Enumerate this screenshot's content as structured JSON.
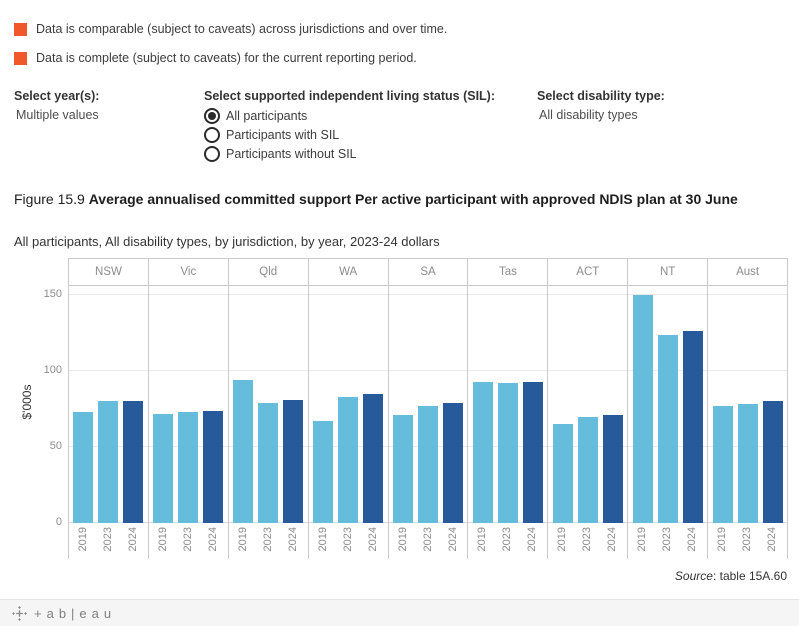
{
  "colors": {
    "caveat_orange": "#F0582B",
    "bar_light_blue": "#66BDDB",
    "bar_dark_blue": "#265A9A",
    "grid_gray": "#e9e9e9",
    "divider_gray": "#c9c9c9"
  },
  "caveats": {
    "items": [
      "Data is comparable (subject to caveats) across jurisdictions and over time.",
      "Data is complete (subject to caveats) for the current reporting period."
    ]
  },
  "filters": {
    "year": {
      "label": "Select year(s):",
      "value": "Multiple values"
    },
    "sil": {
      "label": "Select supported independent living status (SIL):",
      "options": [
        {
          "label": "All participants",
          "selected": true
        },
        {
          "label": "Participants with SIL",
          "selected": false
        },
        {
          "label": "Participants without SIL",
          "selected": false
        }
      ]
    },
    "disability": {
      "label": "Select disability type:",
      "value": "All disability types"
    }
  },
  "figure": {
    "title_prefix": "Figure 15.9 ",
    "title_bold": "Average annualised committed support Per active participant with approved NDIS plan at 30 June",
    "subtitle": "All participants, All disability types, by jurisdiction, by year, 2023-24 dollars",
    "source_label": "Source",
    "source_rest": ": table 15A.60"
  },
  "chart_data": {
    "type": "bar",
    "title": "Average annualised committed support per active participant with approved NDIS plan at 30 June",
    "ylabel": "$'000s",
    "ylim": [
      0,
      156
    ],
    "yticks": [
      0,
      50,
      100,
      150
    ],
    "grid": true,
    "legend": "none",
    "categories": [
      "NSW",
      "Vic",
      "Qld",
      "WA",
      "SA",
      "Tas",
      "ACT",
      "NT",
      "Aust"
    ],
    "bar_labels": [
      "2019",
      "2023",
      "2024"
    ],
    "series": [
      {
        "name": "2019",
        "values": [
          73,
          72,
          94,
          67,
          71,
          93,
          65,
          150,
          77
        ]
      },
      {
        "name": "2023",
        "values": [
          80,
          73,
          79,
          83,
          77,
          92,
          70,
          124,
          78
        ]
      },
      {
        "name": "2024",
        "values": [
          80,
          74,
          81,
          85,
          79,
          93,
          71,
          126,
          80
        ]
      }
    ],
    "bar_colors": [
      "#66BDDB",
      "#66BDDB",
      "#265A9A"
    ]
  },
  "footer": {
    "wordmark": "+ab|eau"
  }
}
